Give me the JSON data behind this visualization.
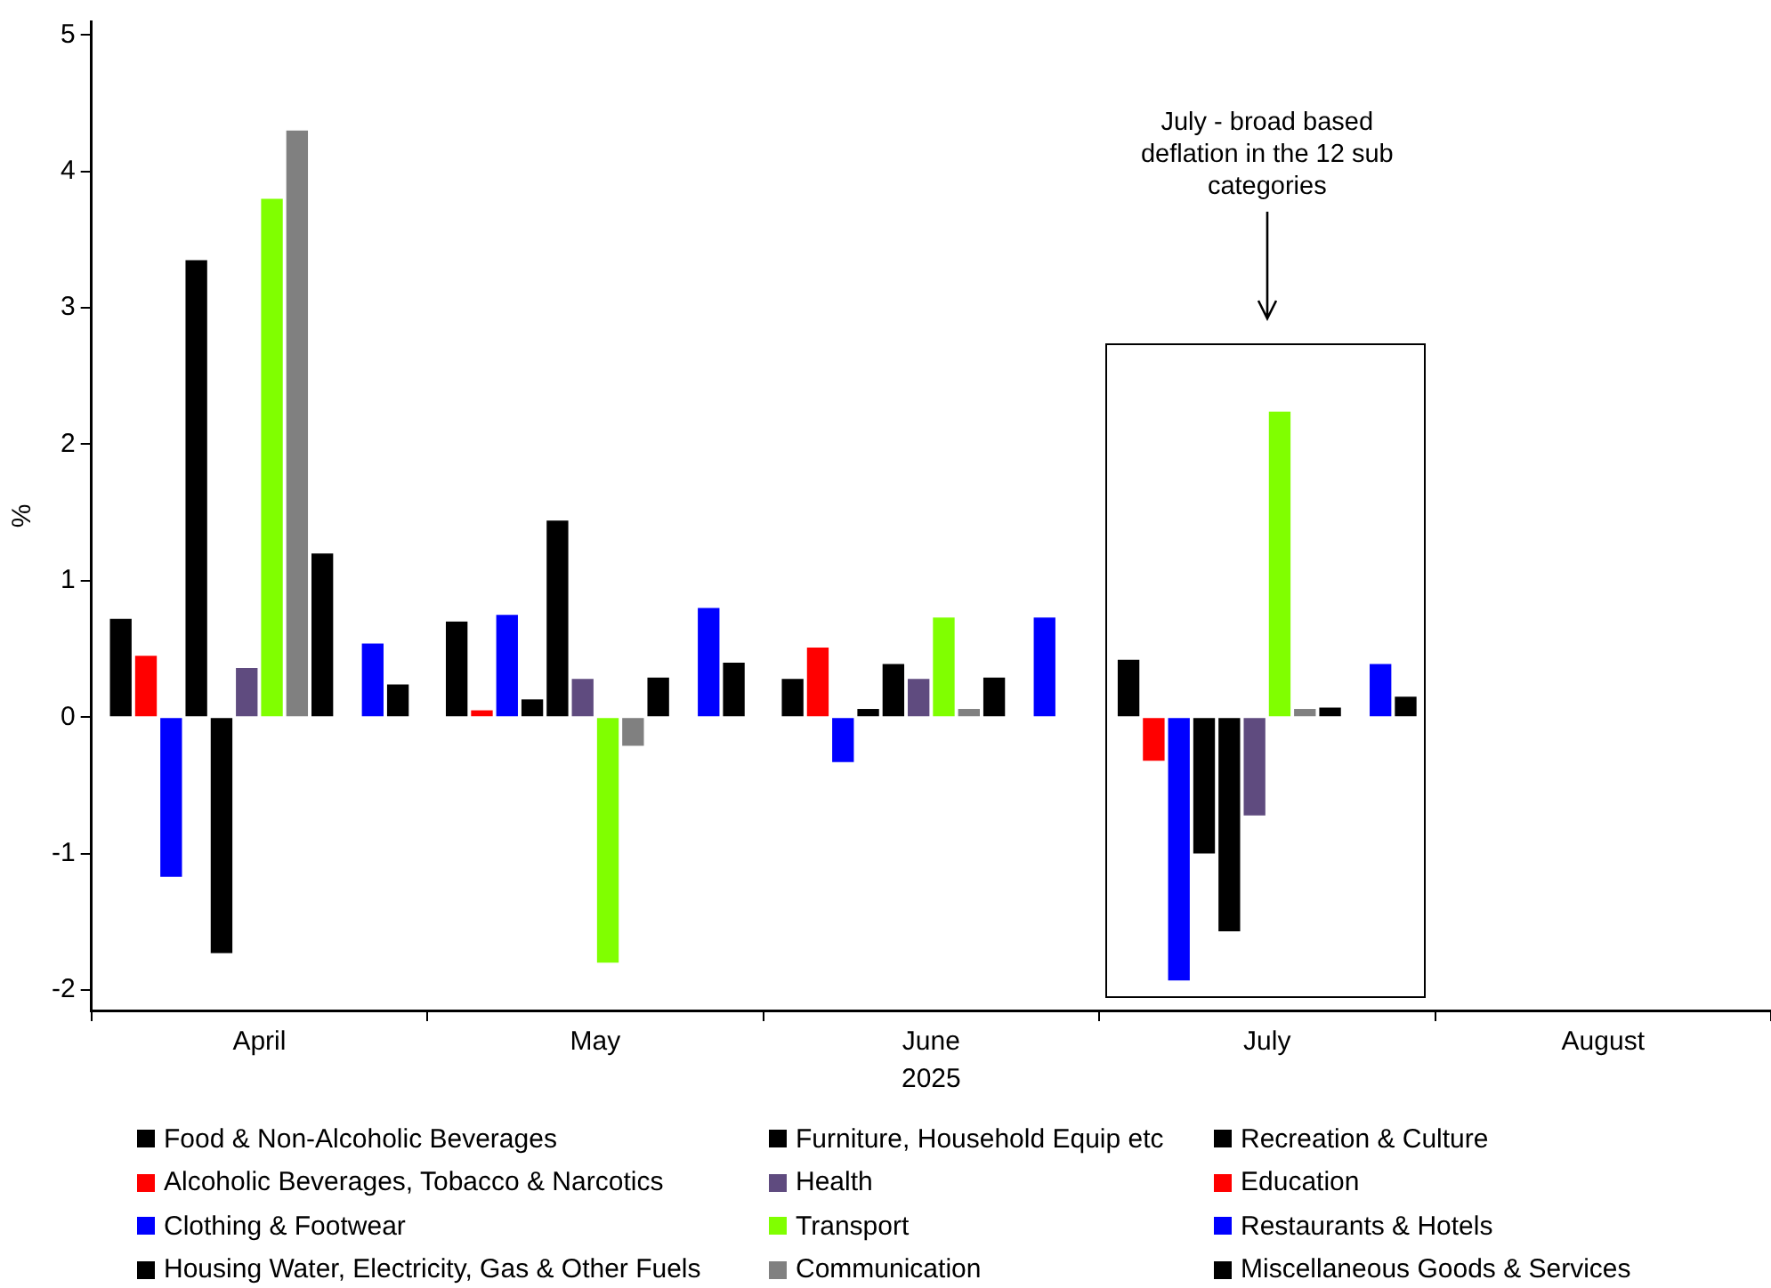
{
  "chart_data": {
    "type": "bar",
    "ylabel": "%",
    "xlabel": "2025",
    "categories": [
      "April",
      "May",
      "June",
      "July",
      "August"
    ],
    "ylim": [
      -2.15,
      5.1
    ],
    "yticks": [
      -2,
      -1,
      0,
      1,
      2,
      3,
      4,
      5
    ],
    "grid": false,
    "legend": "bottom",
    "annotations": [
      "July - broad based deflation in the 12 sub categories"
    ],
    "series": [
      {
        "name": "Food & Non-Alcoholic Beverages",
        "color": "#000000",
        "values": [
          0.72,
          0.7,
          0.28,
          0.42,
          null
        ]
      },
      {
        "name": "Alcoholic Beverages, Tobacco & Narcotics",
        "color": "#ff0000",
        "values": [
          0.45,
          0.05,
          0.51,
          -0.32,
          null
        ]
      },
      {
        "name": "Clothing & Footwear",
        "color": "#0000ff",
        "values": [
          -1.17,
          0.75,
          -0.33,
          -1.93,
          null
        ]
      },
      {
        "name": "Housing Water, Electricity, Gas & Other Fuels",
        "color": "#000000",
        "values": [
          3.35,
          0.13,
          0.06,
          -1.0,
          null
        ]
      },
      {
        "name": "Furniture, Household Equip etc",
        "color": "#000000",
        "values": [
          -1.73,
          1.44,
          0.39,
          -1.57,
          null
        ]
      },
      {
        "name": "Health",
        "color": "#5f4b7f",
        "values": [
          0.36,
          0.28,
          0.28,
          -0.72,
          null
        ]
      },
      {
        "name": "Transport",
        "color": "#80ff00",
        "values": [
          3.8,
          -1.8,
          0.73,
          2.24,
          null
        ]
      },
      {
        "name": "Communication",
        "color": "#808080",
        "values": [
          4.3,
          -0.21,
          0.06,
          0.06,
          null
        ]
      },
      {
        "name": "Recreation & Culture",
        "color": "#000000",
        "values": [
          1.2,
          0.29,
          0.29,
          0.07,
          null
        ]
      },
      {
        "name": "Education",
        "color": "#ff0000",
        "values": [
          null,
          null,
          null,
          null,
          null
        ]
      },
      {
        "name": "Restaurants & Hotels",
        "color": "#0000ff",
        "values": [
          0.54,
          0.8,
          0.73,
          0.39,
          null
        ]
      },
      {
        "name": "Miscellaneous Goods & Services",
        "color": "#000000",
        "values": [
          0.24,
          0.4,
          null,
          0.15,
          null
        ]
      }
    ]
  }
}
